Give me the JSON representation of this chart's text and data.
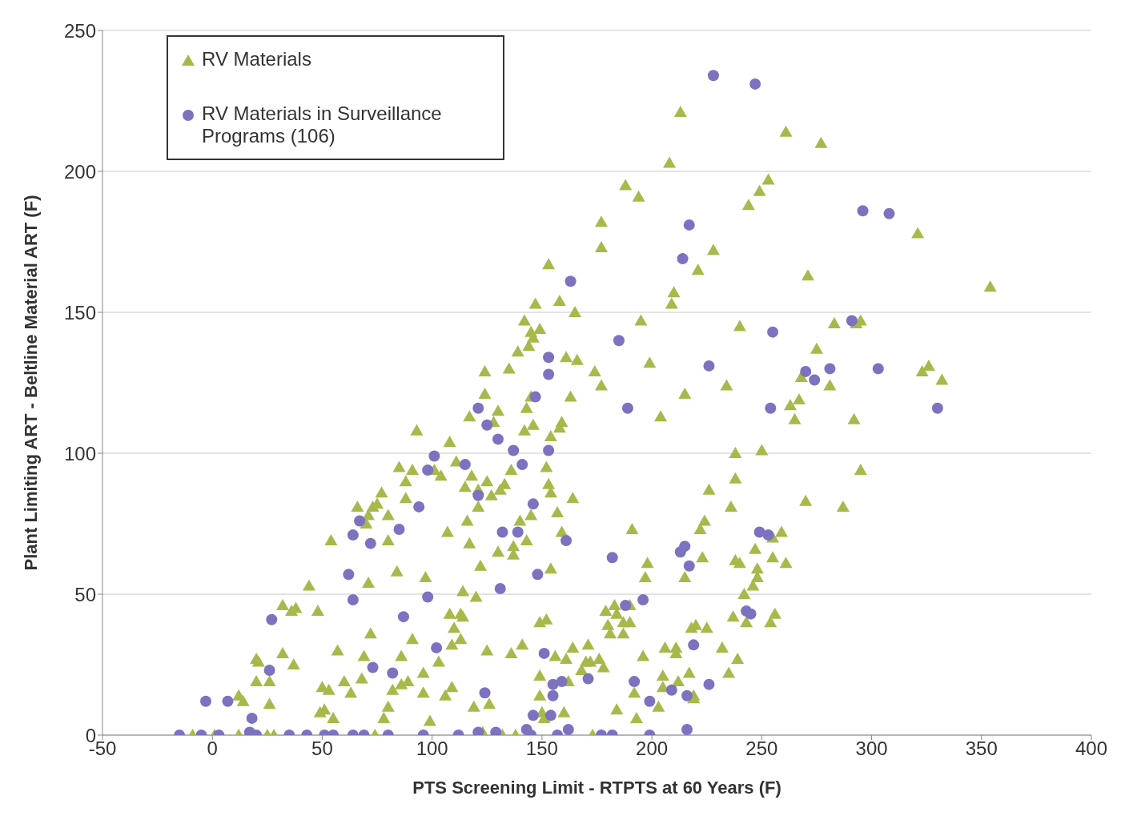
{
  "chart_data": {
    "type": "scatter",
    "xlabel": "PTS Screening Limit - RTPTS at 60 Years (F)",
    "ylabel": "Plant Limiting ART - Beltline Material ART (F)",
    "xlim": [
      -50,
      400
    ],
    "xticks": [
      -50,
      0,
      50,
      100,
      150,
      200,
      250,
      300,
      350,
      400
    ],
    "ylim": [
      0,
      250
    ],
    "yticks": [
      0,
      50,
      100,
      150,
      200,
      250
    ],
    "grid": "y",
    "legend": "top left",
    "series": [
      {
        "name": "RV Materials",
        "color": "#a9b84a",
        "marker": "triangle",
        "x": [
          -9,
          1,
          12,
          14,
          12,
          20,
          21,
          20,
          25,
          26,
          26,
          28,
          32,
          32,
          36,
          37,
          38,
          44,
          48,
          49,
          50,
          51,
          53,
          54,
          55,
          57,
          60,
          63,
          66,
          68,
          69,
          70,
          71,
          71,
          72,
          73,
          74,
          75,
          77,
          78,
          80,
          80,
          80,
          82,
          84,
          85,
          86,
          86,
          88,
          88,
          89,
          91,
          91,
          93,
          96,
          96,
          97,
          99,
          101,
          103,
          104,
          106,
          107,
          108,
          108,
          109,
          109,
          110,
          111,
          113,
          113,
          114,
          114,
          115,
          116,
          117,
          117,
          118,
          119,
          120,
          121,
          121,
          122,
          123,
          124,
          124,
          125,
          125,
          126,
          127,
          128,
          130,
          130,
          131,
          132,
          133,
          135,
          136,
          136,
          137,
          137,
          138,
          139,
          140,
          141,
          142,
          142,
          143,
          143,
          144,
          145,
          145,
          145,
          146,
          146,
          147,
          149,
          149,
          149,
          149,
          150,
          151,
          152,
          152,
          153,
          153,
          154,
          154,
          154,
          156,
          157,
          158,
          158,
          159,
          159,
          160,
          161,
          161,
          162,
          163,
          164,
          164,
          165,
          166,
          168,
          170,
          171,
          172,
          173,
          174,
          176,
          177,
          177,
          177,
          178,
          179,
          180,
          181,
          183,
          184,
          184,
          187,
          187,
          188,
          190,
          190,
          191,
          192,
          193,
          194,
          195,
          196,
          197,
          198,
          199,
          203,
          204,
          205,
          205,
          206,
          208,
          209,
          210,
          211,
          211,
          212,
          213,
          215,
          215,
          217,
          218,
          219,
          219,
          220,
          221,
          222,
          223,
          224,
          225,
          226,
          228,
          232,
          234,
          235,
          236,
          237,
          238,
          238,
          238,
          240,
          239,
          240,
          242,
          243,
          244,
          246,
          247,
          248,
          248,
          249,
          250,
          253,
          254,
          255,
          255,
          256,
          259,
          261,
          261,
          263,
          265,
          267,
          268,
          270,
          271,
          275,
          277,
          281,
          283,
          287,
          292,
          293,
          295,
          295,
          321,
          323,
          326,
          332,
          354
        ],
        "values": [
          0,
          0,
          14,
          12,
          0,
          19,
          26,
          27,
          0,
          11,
          19,
          0,
          29,
          46,
          44,
          25,
          45,
          53,
          44,
          8,
          17,
          9,
          16,
          69,
          6,
          30,
          19,
          15,
          81,
          20,
          28,
          75,
          54,
          78,
          36,
          81,
          0,
          82,
          86,
          6,
          78,
          69,
          10,
          16,
          58,
          95,
          28,
          18,
          84,
          90,
          19,
          94,
          34,
          108,
          15,
          22,
          56,
          5,
          94,
          26,
          92,
          14,
          72,
          43,
          104,
          17,
          32,
          38,
          97,
          34,
          43,
          51,
          42,
          88,
          76,
          68,
          113,
          92,
          10,
          49,
          81,
          87,
          60,
          1,
          129,
          121,
          30,
          90,
          11,
          85,
          111,
          115,
          65,
          87,
          0,
          89,
          130,
          29,
          94,
          67,
          64,
          0,
          136,
          76,
          32,
          147,
          108,
          69,
          116,
          138,
          143,
          120,
          78,
          110,
          141,
          153,
          144,
          21,
          14,
          40,
          8,
          6,
          95,
          41,
          167,
          89,
          106,
          86,
          59,
          28,
          79,
          109,
          154,
          111,
          72,
          8,
          134,
          27,
          19,
          120,
          31,
          84,
          150,
          133,
          23,
          26,
          32,
          26,
          0,
          129,
          27,
          182,
          173,
          124,
          24,
          44,
          39,
          36,
          46,
          43,
          9,
          40,
          36,
          195,
          46,
          40,
          73,
          15,
          6,
          191,
          147,
          28,
          56,
          61,
          132,
          10,
          113,
          17,
          21,
          31,
          203,
          153,
          157,
          31,
          29,
          19,
          221,
          121,
          56,
          22,
          38,
          14,
          13,
          39,
          165,
          73,
          63,
          76,
          38,
          87,
          172,
          31,
          124,
          22,
          81,
          42,
          91,
          62,
          100,
          145,
          27,
          61,
          50,
          40,
          188,
          53,
          66,
          59,
          56,
          193,
          101,
          197,
          40,
          70,
          63,
          43,
          72,
          214,
          61,
          117,
          112,
          119,
          127,
          83,
          163,
          137,
          210,
          124,
          146,
          81,
          112,
          146,
          147,
          94,
          178,
          129,
          131,
          126,
          159
        ]
      },
      {
        "name": "RV Materials in Surveillance Programs (106)",
        "color": "#7b72c0",
        "marker": "circle",
        "x": [
          -15,
          -5,
          -3,
          3,
          7,
          18,
          17,
          20,
          27,
          26,
          35,
          43,
          51,
          55,
          62,
          64,
          64,
          67,
          64,
          69,
          72,
          73,
          80,
          82,
          85,
          87,
          94,
          96,
          98,
          101,
          98,
          102,
          112,
          115,
          121,
          121,
          121,
          124,
          125,
          129,
          130,
          131,
          132,
          137,
          139,
          141,
          143,
          145,
          146,
          146,
          147,
          148,
          151,
          153,
          153,
          153,
          155,
          154,
          155,
          157,
          159,
          161,
          162,
          163,
          171,
          177,
          182,
          182,
          185,
          188,
          189,
          192,
          196,
          199,
          199,
          209,
          213,
          215,
          214,
          216,
          217,
          217,
          216,
          219,
          226,
          226,
          228,
          243,
          245,
          247,
          249,
          253,
          254,
          255,
          270,
          274,
          281,
          291,
          296,
          303,
          308,
          330
        ],
        "values": [
          0,
          0,
          12,
          0,
          12,
          6,
          1,
          0,
          41,
          23,
          0,
          0,
          0,
          0,
          57,
          71,
          48,
          76,
          0,
          0,
          68,
          24,
          0,
          22,
          73,
          42,
          81,
          0,
          94,
          99,
          49,
          31,
          0,
          96,
          116,
          1,
          85,
          15,
          110,
          1,
          105,
          52,
          72,
          101,
          72,
          96,
          2,
          0,
          82,
          7,
          120,
          57,
          29,
          134,
          128,
          101,
          14,
          7,
          18,
          0,
          19,
          69,
          2,
          161,
          20,
          0,
          0,
          63,
          140,
          46,
          116,
          19,
          48,
          12,
          0,
          16,
          65,
          67,
          169,
          14,
          60,
          181,
          2,
          32,
          18,
          131,
          234,
          44,
          43,
          231,
          72,
          71,
          116,
          143,
          129,
          126,
          130,
          147,
          186,
          130,
          185,
          116
        ]
      }
    ]
  }
}
